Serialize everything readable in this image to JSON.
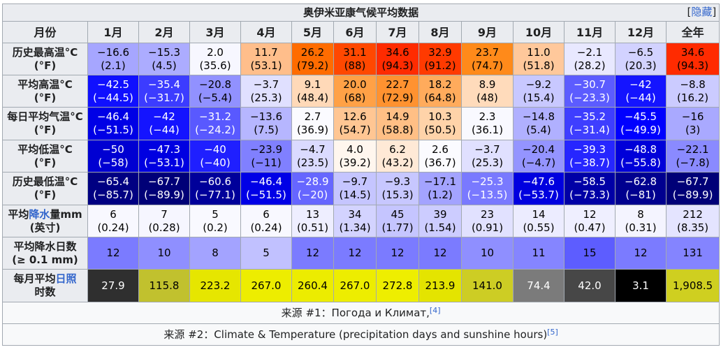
{
  "title": "奥伊米亚康气候平均数据",
  "hide_link": "隐藏",
  "header": [
    "月份",
    "1月",
    "2月",
    "3月",
    "4月",
    "5月",
    "6月",
    "7月",
    "8月",
    "9月",
    "10月",
    "11月",
    "12月",
    "全年"
  ],
  "rows": [
    {
      "key": "record_high",
      "label": "历史最高温°C (°F)",
      "cells": [
        {
          "v": "−16.6",
          "s": "(2.1)",
          "bg": "#a6a6ff",
          "fg": "#000000"
        },
        {
          "v": "−15.3",
          "s": "(4.5)",
          "bg": "#acacff",
          "fg": "#000000"
        },
        {
          "v": "2.0",
          "s": "(35.6)",
          "bg": "#f7f7ff",
          "fg": "#000000"
        },
        {
          "v": "11.7",
          "s": "(53.1)",
          "bg": "#ffbe8b",
          "fg": "#000000"
        },
        {
          "v": "26.2",
          "s": "(79.2)",
          "bg": "#ff6c00",
          "fg": "#000000"
        },
        {
          "v": "31.1",
          "s": "(88)",
          "bg": "#ff4800",
          "fg": "#000000"
        },
        {
          "v": "34.6",
          "s": "(94.3)",
          "bg": "#ff2b00",
          "fg": "#000000"
        },
        {
          "v": "32.9",
          "s": "(91.2)",
          "bg": "#ff3a00",
          "fg": "#000000"
        },
        {
          "v": "23.7",
          "s": "(74.7)",
          "bg": "#ff8a1a",
          "fg": "#000000"
        },
        {
          "v": "11.0",
          "s": "(51.8)",
          "bg": "#ffc89b",
          "fg": "#000000"
        },
        {
          "v": "−2.1",
          "s": "(28.2)",
          "bg": "#e8e8ff",
          "fg": "#000000"
        },
        {
          "v": "−6.5",
          "s": "(20.3)",
          "bg": "#d2d2ff",
          "fg": "#000000"
        },
        {
          "v": "34.6",
          "s": "(94.3)",
          "bg": "#ff2b00",
          "fg": "#000000"
        }
      ]
    },
    {
      "key": "avg_high",
      "label": "平均高温°C (°F)",
      "cells": [
        {
          "v": "−42.5",
          "s": "(−44.5)",
          "bg": "#1010ff",
          "fg": "#ffffff"
        },
        {
          "v": "−35.4",
          "s": "(−31.7)",
          "bg": "#3c3cff",
          "fg": "#ffffff"
        },
        {
          "v": "−20.8",
          "s": "(−5.4)",
          "bg": "#9191ff",
          "fg": "#000000"
        },
        {
          "v": "−3.7",
          "s": "(25.3)",
          "bg": "#e0e0ff",
          "fg": "#000000"
        },
        {
          "v": "9.1",
          "s": "(48.4)",
          "bg": "#ffd9b8",
          "fg": "#000000"
        },
        {
          "v": "20.0",
          "s": "(68)",
          "bg": "#ffa146",
          "fg": "#000000"
        },
        {
          "v": "22.7",
          "s": "(72.9)",
          "bg": "#ff9230",
          "fg": "#000000"
        },
        {
          "v": "18.2",
          "s": "(64.8)",
          "bg": "#ffab5c",
          "fg": "#000000"
        },
        {
          "v": "8.9",
          "s": "(48)",
          "bg": "#ffdbbb",
          "fg": "#000000"
        },
        {
          "v": "−9.2",
          "s": "(15.4)",
          "bg": "#c8c8ff",
          "fg": "#000000"
        },
        {
          "v": "−30.7",
          "s": "(−23.3)",
          "bg": "#5c5cff",
          "fg": "#ffffff"
        },
        {
          "v": "−42",
          "s": "(−44)",
          "bg": "#1414ff",
          "fg": "#ffffff"
        },
        {
          "v": "−8.8",
          "s": "(16.2)",
          "bg": "#cbcbff",
          "fg": "#000000"
        }
      ]
    },
    {
      "key": "daily_mean",
      "label": "每日平均气温°C (°F)",
      "cells": [
        {
          "v": "−46.4",
          "s": "(−51.5)",
          "bg": "#0000e6",
          "fg": "#ffffff"
        },
        {
          "v": "−42",
          "s": "(−44)",
          "bg": "#1414ff",
          "fg": "#ffffff"
        },
        {
          "v": "−31.2",
          "s": "(−24.2)",
          "bg": "#5959ff",
          "fg": "#ffffff"
        },
        {
          "v": "−13.6",
          "s": "(7.5)",
          "bg": "#b6b6ff",
          "fg": "#000000"
        },
        {
          "v": "2.7",
          "s": "(36.9)",
          "bg": "#fbfbff",
          "fg": "#000000"
        },
        {
          "v": "12.6",
          "s": "(54.7)",
          "bg": "#ffc693",
          "fg": "#000000"
        },
        {
          "v": "14.9",
          "s": "(58.8)",
          "bg": "#ffbf85",
          "fg": "#000000"
        },
        {
          "v": "10.3",
          "s": "(50.5)",
          "bg": "#ffd3a9",
          "fg": "#000000"
        },
        {
          "v": "2.3",
          "s": "(36.1)",
          "bg": "#f9f9ff",
          "fg": "#000000"
        },
        {
          "v": "−14.8",
          "s": "(5.4)",
          "bg": "#b0b0ff",
          "fg": "#000000"
        },
        {
          "v": "−35.2",
          "s": "(−31.4)",
          "bg": "#3e3eff",
          "fg": "#ffffff"
        },
        {
          "v": "−45.5",
          "s": "(−49.9)",
          "bg": "#0000ff",
          "fg": "#ffffff"
        },
        {
          "v": "−16",
          "s": "(3)",
          "bg": "#a9a9ff",
          "fg": "#000000"
        }
      ]
    },
    {
      "key": "avg_low",
      "label": "平均低温°C (°F)",
      "cells": [
        {
          "v": "−50",
          "s": "(−58)",
          "bg": "#0000d2",
          "fg": "#ffffff"
        },
        {
          "v": "−47.3",
          "s": "(−53.1)",
          "bg": "#0000e1",
          "fg": "#ffffff"
        },
        {
          "v": "−40",
          "s": "(−40)",
          "bg": "#1f1fff",
          "fg": "#ffffff"
        },
        {
          "v": "−23.9",
          "s": "(−11)",
          "bg": "#8080ff",
          "fg": "#000000"
        },
        {
          "v": "−4.7",
          "s": "(23.5)",
          "bg": "#dadaff",
          "fg": "#000000"
        },
        {
          "v": "4.0",
          "s": "(39.2)",
          "bg": "#fff6ee",
          "fg": "#000000"
        },
        {
          "v": "6.2",
          "s": "(43.2)",
          "bg": "#ffe9d6",
          "fg": "#000000"
        },
        {
          "v": "2.6",
          "s": "(36.7)",
          "bg": "#fbfbff",
          "fg": "#000000"
        },
        {
          "v": "−3.7",
          "s": "(25.3)",
          "bg": "#e0e0ff",
          "fg": "#000000"
        },
        {
          "v": "−20.4",
          "s": "(−4.7)",
          "bg": "#9494ff",
          "fg": "#000000"
        },
        {
          "v": "−39.3",
          "s": "(−38.7)",
          "bg": "#2626ff",
          "fg": "#ffffff"
        },
        {
          "v": "−48.8",
          "s": "(−55.8)",
          "bg": "#0000d9",
          "fg": "#ffffff"
        },
        {
          "v": "−22.1",
          "s": "(−7.8)",
          "bg": "#8a8aff",
          "fg": "#000000"
        }
      ]
    },
    {
      "key": "record_low",
      "label": "历史最低温°C (°F)",
      "cells": [
        {
          "v": "−65.4",
          "s": "(−85.7)",
          "bg": "#000082",
          "fg": "#ffffff"
        },
        {
          "v": "−67.7",
          "s": "(−89.9)",
          "bg": "#000077",
          "fg": "#ffffff"
        },
        {
          "v": "−60.6",
          "s": "(−77.1)",
          "bg": "#00009a",
          "fg": "#ffffff"
        },
        {
          "v": "−46.4",
          "s": "(−51.5)",
          "bg": "#0000e6",
          "fg": "#ffffff"
        },
        {
          "v": "−28.9",
          "s": "(−20)",
          "bg": "#6666ff",
          "fg": "#ffffff"
        },
        {
          "v": "−9.7",
          "s": "(14.5)",
          "bg": "#c5c5ff",
          "fg": "#000000"
        },
        {
          "v": "−9.3",
          "s": "(15.3)",
          "bg": "#c7c7ff",
          "fg": "#000000"
        },
        {
          "v": "−17.1",
          "s": "(1.2)",
          "bg": "#a3a3ff",
          "fg": "#000000"
        },
        {
          "v": "−25.3",
          "s": "(−13.5)",
          "bg": "#7979ff",
          "fg": "#ffffff"
        },
        {
          "v": "−47.6",
          "s": "(−53.7)",
          "bg": "#0000df",
          "fg": "#ffffff"
        },
        {
          "v": "−58.5",
          "s": "(−73.3)",
          "bg": "#0000a6",
          "fg": "#ffffff"
        },
        {
          "v": "−62.8",
          "s": "(−81)",
          "bg": "#00008f",
          "fg": "#ffffff"
        },
        {
          "v": "−67.7",
          "s": "(−89.9)",
          "bg": "#000077",
          "fg": "#ffffff"
        }
      ]
    },
    {
      "key": "precip",
      "label_a": "平均",
      "label_link": "降水",
      "label_b": "量mm",
      "label_c": "(英寸)",
      "cells": [
        {
          "v": "6",
          "s": "(0.24)",
          "bg": "#f8f8ff",
          "fg": "#000000"
        },
        {
          "v": "7",
          "s": "(0.28)",
          "bg": "#f6f6ff",
          "fg": "#000000"
        },
        {
          "v": "5",
          "s": "(0.2)",
          "bg": "#f9f9ff",
          "fg": "#000000"
        },
        {
          "v": "6",
          "s": "(0.24)",
          "bg": "#f8f8ff",
          "fg": "#000000"
        },
        {
          "v": "13",
          "s": "(0.51)",
          "bg": "#eeeeff",
          "fg": "#000000"
        },
        {
          "v": "34",
          "s": "(1.34)",
          "bg": "#d3d3ff",
          "fg": "#000000"
        },
        {
          "v": "45",
          "s": "(1.77)",
          "bg": "#c5c5ff",
          "fg": "#000000"
        },
        {
          "v": "39",
          "s": "(1.54)",
          "bg": "#ccccff",
          "fg": "#000000"
        },
        {
          "v": "23",
          "s": "(0.91)",
          "bg": "#e1e1ff",
          "fg": "#000000"
        },
        {
          "v": "14",
          "s": "(0.55)",
          "bg": "#ececff",
          "fg": "#000000"
        },
        {
          "v": "12",
          "s": "(0.47)",
          "bg": "#efefff",
          "fg": "#000000"
        },
        {
          "v": "8",
          "s": "(0.31)",
          "bg": "#f4f4ff",
          "fg": "#000000"
        },
        {
          "v": "212",
          "s": "(8.35)",
          "bg": "#e4e4ff",
          "fg": "#000000"
        }
      ]
    },
    {
      "key": "precip_days",
      "label_a": "平均降水日数",
      "label_c": "(≥ 0.1 mm)",
      "cells": [
        {
          "v": "12",
          "bg": "#7b7bff",
          "fg": "#000000"
        },
        {
          "v": "10",
          "bg": "#8f8fff",
          "fg": "#000000"
        },
        {
          "v": "8",
          "bg": "#a3a3ff",
          "fg": "#000000"
        },
        {
          "v": "5",
          "bg": "#c1c1ff",
          "fg": "#000000"
        },
        {
          "v": "12",
          "bg": "#7b7bff",
          "fg": "#000000"
        },
        {
          "v": "12",
          "bg": "#7b7bff",
          "fg": "#000000"
        },
        {
          "v": "12",
          "bg": "#7b7bff",
          "fg": "#000000"
        },
        {
          "v": "12",
          "bg": "#7b7bff",
          "fg": "#000000"
        },
        {
          "v": "10",
          "bg": "#8f8fff",
          "fg": "#000000"
        },
        {
          "v": "11",
          "bg": "#8585ff",
          "fg": "#000000"
        },
        {
          "v": "15",
          "bg": "#5d5dff",
          "fg": "#000000"
        },
        {
          "v": "12",
          "bg": "#7b7bff",
          "fg": "#000000"
        },
        {
          "v": "131",
          "bg": "#8484ff",
          "fg": "#000000"
        }
      ]
    },
    {
      "key": "sunshine",
      "label_a": "每月平均",
      "label_link": "日照",
      "label_c": "时数",
      "cells": [
        {
          "v": "27.9",
          "bg": "#2f2f2f",
          "fg": "#ffffff"
        },
        {
          "v": "115.8",
          "bg": "#c1c12e",
          "fg": "#000000"
        },
        {
          "v": "223.2",
          "bg": "#e6e600",
          "fg": "#000000"
        },
        {
          "v": "267.0",
          "bg": "#eded00",
          "fg": "#000000"
        },
        {
          "v": "260.4",
          "bg": "#ecec00",
          "fg": "#000000"
        },
        {
          "v": "267.0",
          "bg": "#eded00",
          "fg": "#000000"
        },
        {
          "v": "272.8",
          "bg": "#eeee00",
          "fg": "#000000"
        },
        {
          "v": "213.9",
          "bg": "#e4e400",
          "fg": "#000000"
        },
        {
          "v": "141.0",
          "bg": "#cdcd24",
          "fg": "#000000"
        },
        {
          "v": "74.4",
          "bg": "#7b7b7b",
          "fg": "#ffffff"
        },
        {
          "v": "42.0",
          "bg": "#474747",
          "fg": "#ffffff"
        },
        {
          "v": "3.1",
          "bg": "#000000",
          "fg": "#ffffff"
        },
        {
          "v": "1,908.5",
          "bg": "#cfcf20",
          "fg": "#000000"
        }
      ]
    }
  ],
  "sources": [
    {
      "text": "来源 #1：Погода и Климат,",
      "ref": "[4]"
    },
    {
      "text": "来源 #2：Climate & Temperature (precipitation days and sunshine hours)",
      "ref": "[5]"
    }
  ]
}
